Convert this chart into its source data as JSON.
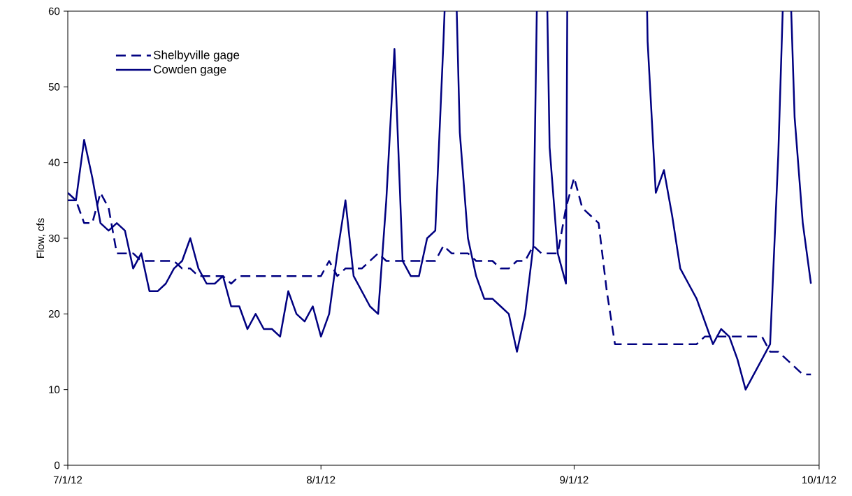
{
  "chart_data": {
    "type": "line",
    "ylabel": "Flow, cfs",
    "xlim": [
      "2012-07-01",
      "2012-10-01"
    ],
    "xticks": [
      {
        "value": "2012-07-01",
        "label": "7/1/12"
      },
      {
        "value": "2012-08-01",
        "label": "8/1/12"
      },
      {
        "value": "2012-09-01",
        "label": "9/1/12"
      },
      {
        "value": "2012-10-01",
        "label": "10/1/12"
      }
    ],
    "ylim": [
      0,
      60
    ],
    "yticks": [
      0,
      10,
      20,
      30,
      40,
      50,
      60
    ],
    "legend": "top left",
    "x": [
      "2012-07-01",
      "2012-07-02",
      "2012-07-03",
      "2012-07-04",
      "2012-07-05",
      "2012-07-06",
      "2012-07-07",
      "2012-07-08",
      "2012-07-09",
      "2012-07-10",
      "2012-07-11",
      "2012-07-12",
      "2012-07-13",
      "2012-07-14",
      "2012-07-15",
      "2012-07-16",
      "2012-07-17",
      "2012-07-18",
      "2012-07-19",
      "2012-07-20",
      "2012-07-21",
      "2012-07-22",
      "2012-07-23",
      "2012-07-24",
      "2012-07-25",
      "2012-07-26",
      "2012-07-27",
      "2012-07-28",
      "2012-07-29",
      "2012-07-30",
      "2012-07-31",
      "2012-08-01",
      "2012-08-02",
      "2012-08-03",
      "2012-08-04",
      "2012-08-05",
      "2012-08-06",
      "2012-08-07",
      "2012-08-08",
      "2012-08-09",
      "2012-08-10",
      "2012-08-11",
      "2012-08-12",
      "2012-08-13",
      "2012-08-14",
      "2012-08-15",
      "2012-08-16",
      "2012-08-17",
      "2012-08-18",
      "2012-08-19",
      "2012-08-20",
      "2012-08-21",
      "2012-08-22",
      "2012-08-23",
      "2012-08-24",
      "2012-08-25",
      "2012-08-26",
      "2012-08-27",
      "2012-08-28",
      "2012-08-29",
      "2012-08-30",
      "2012-08-31",
      "2012-09-01",
      "2012-09-02",
      "2012-09-03",
      "2012-09-04",
      "2012-09-05",
      "2012-09-06",
      "2012-09-07",
      "2012-09-08",
      "2012-09-09",
      "2012-09-10",
      "2012-09-11",
      "2012-09-12",
      "2012-09-13",
      "2012-09-14",
      "2012-09-15",
      "2012-09-16",
      "2012-09-17",
      "2012-09-18",
      "2012-09-19",
      "2012-09-20",
      "2012-09-21",
      "2012-09-22",
      "2012-09-23",
      "2012-09-24",
      "2012-09-25",
      "2012-09-26",
      "2012-09-27",
      "2012-09-28",
      "2012-09-29",
      "2012-09-30"
    ],
    "series": [
      {
        "name": "Shelbyville gage",
        "color": "#000080",
        "line_style": "dashed",
        "values": [
          36,
          35,
          32,
          32,
          36,
          34,
          28,
          28,
          28,
          27,
          27,
          27,
          27,
          27,
          26,
          26,
          25,
          25,
          25,
          25,
          24,
          25,
          25,
          25,
          25,
          25,
          25,
          25,
          25,
          25,
          25,
          25,
          27,
          25,
          26,
          26,
          26,
          27,
          28,
          27,
          27,
          27,
          27,
          27,
          27,
          27,
          29,
          28,
          28,
          28,
          27,
          27,
          27,
          26,
          26,
          27,
          27,
          29,
          28,
          28,
          28,
          34,
          38,
          34,
          33,
          32,
          23,
          16,
          16,
          16,
          16,
          16,
          16,
          16,
          16,
          16,
          16,
          16,
          17,
          17,
          17,
          17,
          17,
          17,
          17,
          17,
          15,
          15,
          14,
          13,
          12,
          12
        ]
      },
      {
        "name": "Cowden gage",
        "color": "#000080",
        "line_style": "solid",
        "x": [
          "2012-07-01",
          "2012-07-02",
          "2012-07-03",
          "2012-07-04",
          "2012-07-05",
          "2012-07-06",
          "2012-07-07",
          "2012-07-08",
          "2012-07-09",
          "2012-07-10",
          "2012-07-11",
          "2012-07-12",
          "2012-07-13",
          "2012-07-14",
          "2012-07-15",
          "2012-07-16",
          "2012-07-17",
          "2012-07-18",
          "2012-07-19",
          "2012-07-20",
          "2012-07-21",
          "2012-07-22",
          "2012-07-23",
          "2012-07-24",
          "2012-07-25",
          "2012-07-26",
          "2012-07-27",
          "2012-07-28",
          "2012-07-29",
          "2012-07-30",
          "2012-07-31",
          "2012-08-01",
          "2012-08-02",
          "2012-08-03",
          "2012-08-04",
          "2012-08-05",
          "2012-08-06",
          "2012-08-07",
          "2012-08-08",
          "2012-08-09",
          "2012-08-10",
          "2012-08-11",
          "2012-08-12",
          "2012-08-13",
          "2012-08-14",
          "2012-08-15",
          "2012-08-16",
          "2012-08-16T03:20",
          "2012-08-17",
          "2012-08-17T15:00",
          "2012-08-18",
          "2012-08-19",
          "2012-08-20",
          "2012-08-21",
          "2012-08-22",
          "2012-08-23",
          "2012-08-24",
          "2012-08-25",
          "2012-08-26",
          "2012-08-27",
          "2012-08-27T10:20",
          "2012-08-28",
          "2012-08-28T17:15",
          "2012-08-29",
          "2012-08-30",
          "2012-08-31",
          "2012-08-31T03:50",
          "2012-09-05",
          "2012-09-09T22:30",
          "2012-09-10",
          "2012-09-11",
          "2012-09-12",
          "2012-09-13",
          "2012-09-14",
          "2012-09-15",
          "2012-09-16",
          "2012-09-17",
          "2012-09-18",
          "2012-09-19",
          "2012-09-20",
          "2012-09-21",
          "2012-09-22",
          "2012-09-23",
          "2012-09-24",
          "2012-09-25",
          "2012-09-26",
          "2012-09-26T13:00",
          "2012-09-27",
          "2012-09-27T14:00",
          "2012-09-28",
          "2012-09-29",
          "2012-09-30"
        ],
        "values": [
          35,
          35,
          43,
          38,
          32,
          31,
          32,
          31,
          26,
          28,
          23,
          23,
          24,
          26,
          27,
          30,
          26,
          24,
          24,
          25,
          21,
          21,
          18,
          20,
          18,
          18,
          17,
          23,
          20,
          19,
          21,
          17,
          20,
          28,
          35,
          25,
          23,
          21,
          20,
          35,
          55,
          27,
          25,
          25,
          30,
          31,
          56,
          60,
          null,
          60,
          44,
          30,
          25,
          22,
          22,
          21,
          20,
          15,
          20,
          29,
          60,
          null,
          60,
          42,
          28,
          24,
          60,
          null,
          60,
          56,
          36,
          39,
          33,
          26,
          24,
          22,
          19,
          16,
          18,
          17,
          14,
          10,
          12,
          14,
          16,
          41,
          60,
          null,
          60,
          46,
          32,
          24
        ]
      }
    ]
  }
}
